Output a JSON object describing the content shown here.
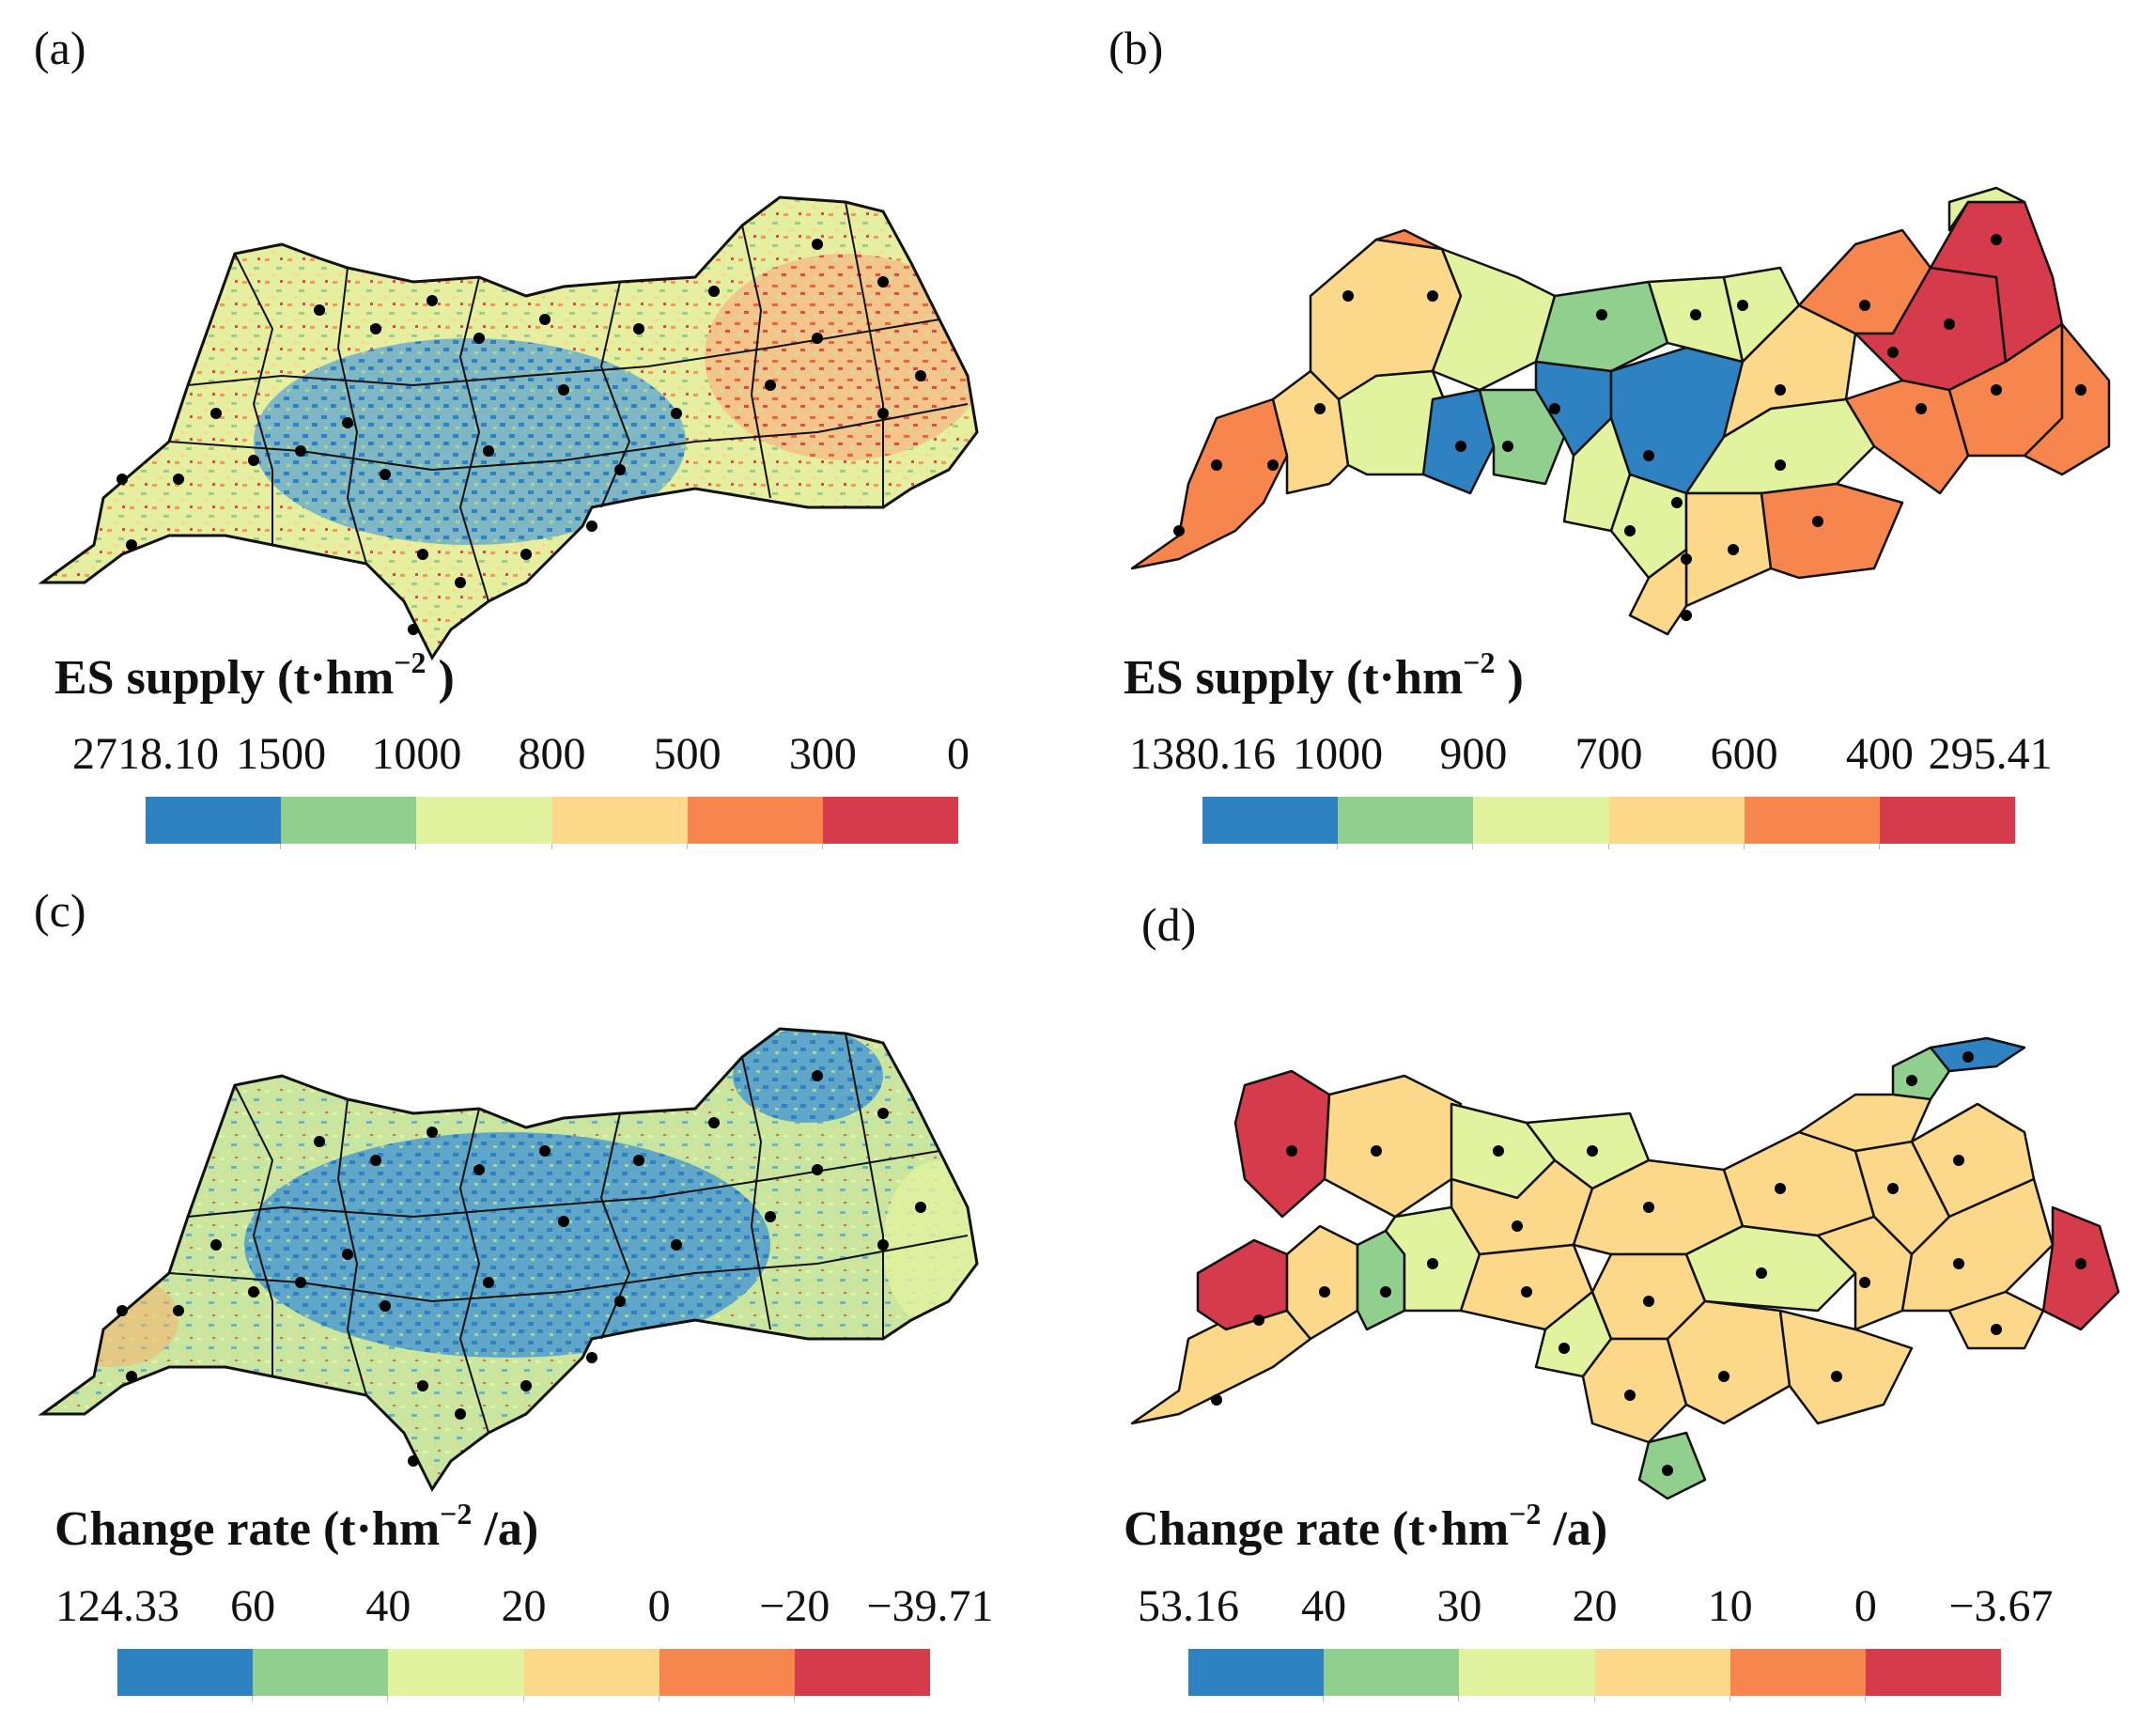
{
  "palette": {
    "blue": "#2f82c2",
    "green": "#91cf8e",
    "light_green": "#e2f3a0",
    "light_orange": "#fcd98a",
    "orange": "#f6854e",
    "red": "#d63b4b",
    "boundary": "#111111"
  },
  "panels": [
    {
      "id": "a",
      "label": "(a)",
      "map_type": "raster (pixel-level)",
      "legend_title": "ES supply (t·hm",
      "legend_unit_exp": "−2",
      "legend_unit_tail": " )",
      "ticks": [
        "2718.10",
        "1500",
        "1000",
        "800",
        "500",
        "300",
        "0"
      ],
      "classes": [
        "blue",
        "green",
        "light_green",
        "light_orange",
        "orange",
        "red"
      ]
    },
    {
      "id": "b",
      "label": "(b)",
      "map_type": "county-level choropleth",
      "legend_title": "ES supply (t·hm",
      "legend_unit_exp": "−2",
      "legend_unit_tail": " )",
      "ticks": [
        "1380.16",
        "1000",
        "900",
        "700",
        "600",
        "400",
        "295.41"
      ],
      "classes": [
        "blue",
        "green",
        "light_green",
        "light_orange",
        "orange",
        "red"
      ]
    },
    {
      "id": "c",
      "label": "(c)",
      "map_type": "raster (pixel-level)",
      "legend_title": "Change rate (t·hm",
      "legend_unit_exp": "−2",
      "legend_unit_tail": " /a)",
      "ticks": [
        "124.33",
        "60",
        "40",
        "20",
        "0",
        "−20",
        "−39.71"
      ],
      "classes": [
        "blue",
        "green",
        "light_green",
        "light_orange",
        "orange",
        "red"
      ]
    },
    {
      "id": "d",
      "label": "(d)",
      "map_type": "county-level choropleth",
      "legend_title": "Change rate (t·hm",
      "legend_unit_exp": "−2",
      "legend_unit_tail": " /a)",
      "ticks": [
        "53.16",
        "40",
        "30",
        "20",
        "10",
        "0",
        "−3.67"
      ],
      "classes": [
        "blue",
        "green",
        "light_green",
        "light_orange",
        "orange",
        "red"
      ]
    }
  ]
}
